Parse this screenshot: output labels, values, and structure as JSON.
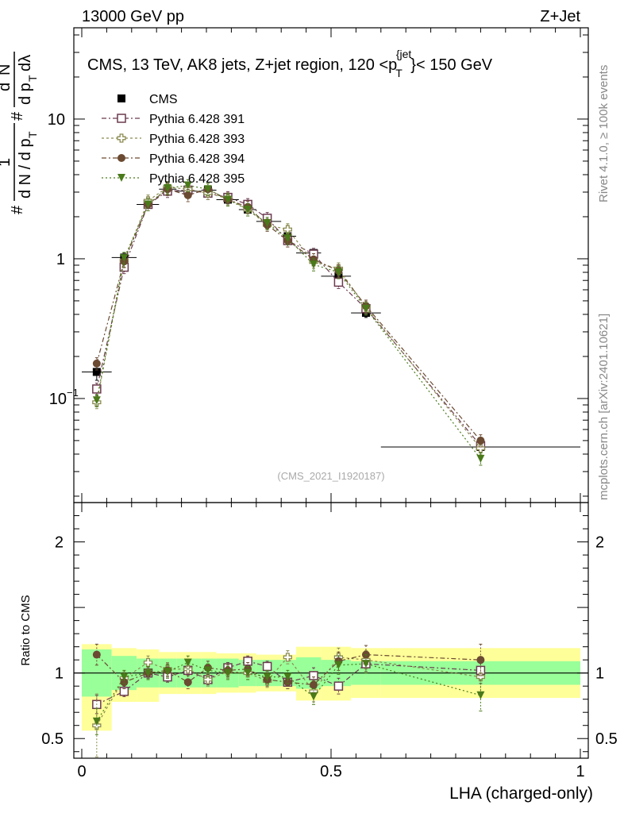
{
  "header": {
    "energy": "13000 GeV pp",
    "process": "Z+Jet"
  },
  "title": "CMS, 13 TeV, AK8 jets, Z+jet region, 120 < p_T^{jet} < 150 GeV",
  "side_labels": {
    "rivet": "Rivet 4.1.0, ≥ 100k events",
    "mcplots": "mcplots.cern.ch [arXiv:2401.10621]"
  },
  "analysis_id": "(CMS_2021_I1920187)",
  "chart_data": {
    "type": "line",
    "xlabel": "LHA (charged-only)",
    "ylabel": "#frac{1}{d N / d p_T} #frac{d^2N}{d p_T d λ}",
    "ratio_ylabel": "Ratio to CMS",
    "xlim": [
      0,
      1
    ],
    "ylim": [
      0.018,
      45
    ],
    "ratio_ylim": [
      0.35,
      2.3
    ],
    "yscale": "log",
    "x_ticks": [
      "0",
      "0.5",
      "1"
    ],
    "main_y_ticks": [
      {
        "label": "10",
        "value": 10
      },
      {
        "label": "1",
        "value": 1
      },
      {
        "label": "10^-1",
        "value": 0.1
      }
    ],
    "ratio_y_ticks": [
      {
        "label": "2",
        "value": 2
      },
      {
        "label": "1",
        "value": 1
      },
      {
        "label": "0.5",
        "value": 0.5
      }
    ],
    "bins": [
      [
        0,
        0.06
      ],
      [
        0.06,
        0.11
      ],
      [
        0.11,
        0.155
      ],
      [
        0.155,
        0.19
      ],
      [
        0.19,
        0.24
      ],
      [
        0.24,
        0.27
      ],
      [
        0.27,
        0.315
      ],
      [
        0.315,
        0.35
      ],
      [
        0.35,
        0.4
      ],
      [
        0.4,
        0.43
      ],
      [
        0.43,
        0.48
      ],
      [
        0.48,
        0.54
      ],
      [
        0.54,
        0.6
      ],
      [
        0.6,
        1.0
      ]
    ],
    "x": [
      0.03,
      0.085,
      0.133,
      0.172,
      0.213,
      0.253,
      0.293,
      0.333,
      0.372,
      0.413,
      0.465,
      0.515,
      0.57,
      0.8
    ],
    "data": {
      "name": "CMS",
      "values": [
        0.155,
        1.02,
        2.45,
        3.15,
        3.05,
        3.1,
        2.65,
        2.25,
        1.85,
        1.45,
        1.1,
        0.75,
        0.41,
        0.045
      ],
      "errors": [
        0.02,
        0.08,
        0.15,
        0.15,
        0.15,
        0.15,
        0.12,
        0.1,
        0.08,
        0.07,
        0.06,
        0.05,
        0.03,
        0.004
      ],
      "band_stat": [
        [
          0.82,
          1.18
        ],
        [
          0.87,
          1.13
        ],
        [
          0.89,
          1.11
        ],
        [
          0.89,
          1.11
        ],
        [
          0.89,
          1.11
        ],
        [
          0.89,
          1.11
        ],
        [
          0.89,
          1.11
        ],
        [
          0.9,
          1.1
        ],
        [
          0.9,
          1.1
        ],
        [
          0.9,
          1.1
        ],
        [
          0.88,
          1.12
        ],
        [
          0.9,
          1.1
        ],
        [
          0.91,
          1.09
        ],
        [
          0.91,
          1.09
        ]
      ],
      "band_total": [
        [
          0.56,
          1.22
        ],
        [
          0.78,
          1.19
        ],
        [
          0.78,
          1.18
        ],
        [
          0.84,
          1.16
        ],
        [
          0.84,
          1.16
        ],
        [
          0.84,
          1.16
        ],
        [
          0.85,
          1.15
        ],
        [
          0.85,
          1.15
        ],
        [
          0.86,
          1.14
        ],
        [
          0.86,
          1.14
        ],
        [
          0.79,
          1.2
        ],
        [
          0.79,
          1.2
        ],
        [
          0.81,
          1.19
        ],
        [
          0.81,
          1.19
        ]
      ]
    },
    "series": [
      {
        "name": "Pythia 6.428 391",
        "color": "#6b3a4f",
        "marker": "open-square",
        "values": [
          0.117,
          0.87,
          2.45,
          3.05,
          3.1,
          2.95,
          2.75,
          2.45,
          1.95,
          1.35,
          1.08,
          0.68,
          0.44,
          0.046
        ],
        "ratio": [
          0.76,
          0.86,
          1.0,
          0.97,
          1.02,
          0.95,
          1.04,
          1.09,
          1.05,
          0.93,
          0.98,
          0.9,
          1.07,
          1.02
        ],
        "ratio_err": [
          0.07,
          0.04,
          0.04,
          0.04,
          0.04,
          0.04,
          0.04,
          0.04,
          0.04,
          0.05,
          0.06,
          0.06,
          0.06,
          0.1
        ]
      },
      {
        "name": "Pythia 6.428 393",
        "color": "#8a8a50",
        "marker": "open-cross",
        "values": [
          0.094,
          0.97,
          2.6,
          3.25,
          3.15,
          2.95,
          2.7,
          2.25,
          1.75,
          1.62,
          0.95,
          0.85,
          0.45,
          0.044
        ],
        "ratio": [
          0.6,
          0.96,
          1.08,
          1.03,
          1.03,
          0.95,
          1.01,
          1.0,
          0.94,
          1.12,
          0.86,
          1.12,
          1.1,
          0.97
        ],
        "ratio_err": [
          0.24,
          0.05,
          0.05,
          0.05,
          0.05,
          0.05,
          0.05,
          0.05,
          0.05,
          0.05,
          0.08,
          0.07,
          0.07,
          0.12
        ]
      },
      {
        "name": "Pythia 6.428 394",
        "color": "#6b4a32",
        "marker": "filled-circle",
        "values": [
          0.178,
          0.96,
          2.45,
          3.15,
          2.85,
          3.15,
          2.65,
          2.35,
          1.75,
          1.35,
          0.99,
          0.82,
          0.46,
          0.05
        ],
        "ratio": [
          1.14,
          0.93,
          1.0,
          1.02,
          0.93,
          1.04,
          1.02,
          1.03,
          0.95,
          0.93,
          0.91,
          1.09,
          1.14,
          1.1
        ],
        "ratio_err": [
          0.08,
          0.05,
          0.05,
          0.05,
          0.05,
          0.05,
          0.05,
          0.05,
          0.05,
          0.05,
          0.06,
          0.07,
          0.07,
          0.12
        ]
      },
      {
        "name": "Pythia 6.428 395",
        "color": "#4a7a1a",
        "marker": "filled-triangle-down",
        "values": [
          0.097,
          1.01,
          2.45,
          3.2,
          3.35,
          3.15,
          2.65,
          2.25,
          1.8,
          1.4,
          0.91,
          0.8,
          0.44,
          0.037
        ],
        "ratio": [
          0.63,
          0.97,
          1.0,
          1.01,
          1.08,
          1.02,
          1.0,
          1.0,
          0.97,
          0.97,
          0.82,
          1.06,
          1.07,
          0.83
        ],
        "ratio_err": [
          0.1,
          0.05,
          0.05,
          0.05,
          0.05,
          0.05,
          0.05,
          0.05,
          0.05,
          0.05,
          0.06,
          0.07,
          0.07,
          0.12
        ]
      }
    ]
  }
}
